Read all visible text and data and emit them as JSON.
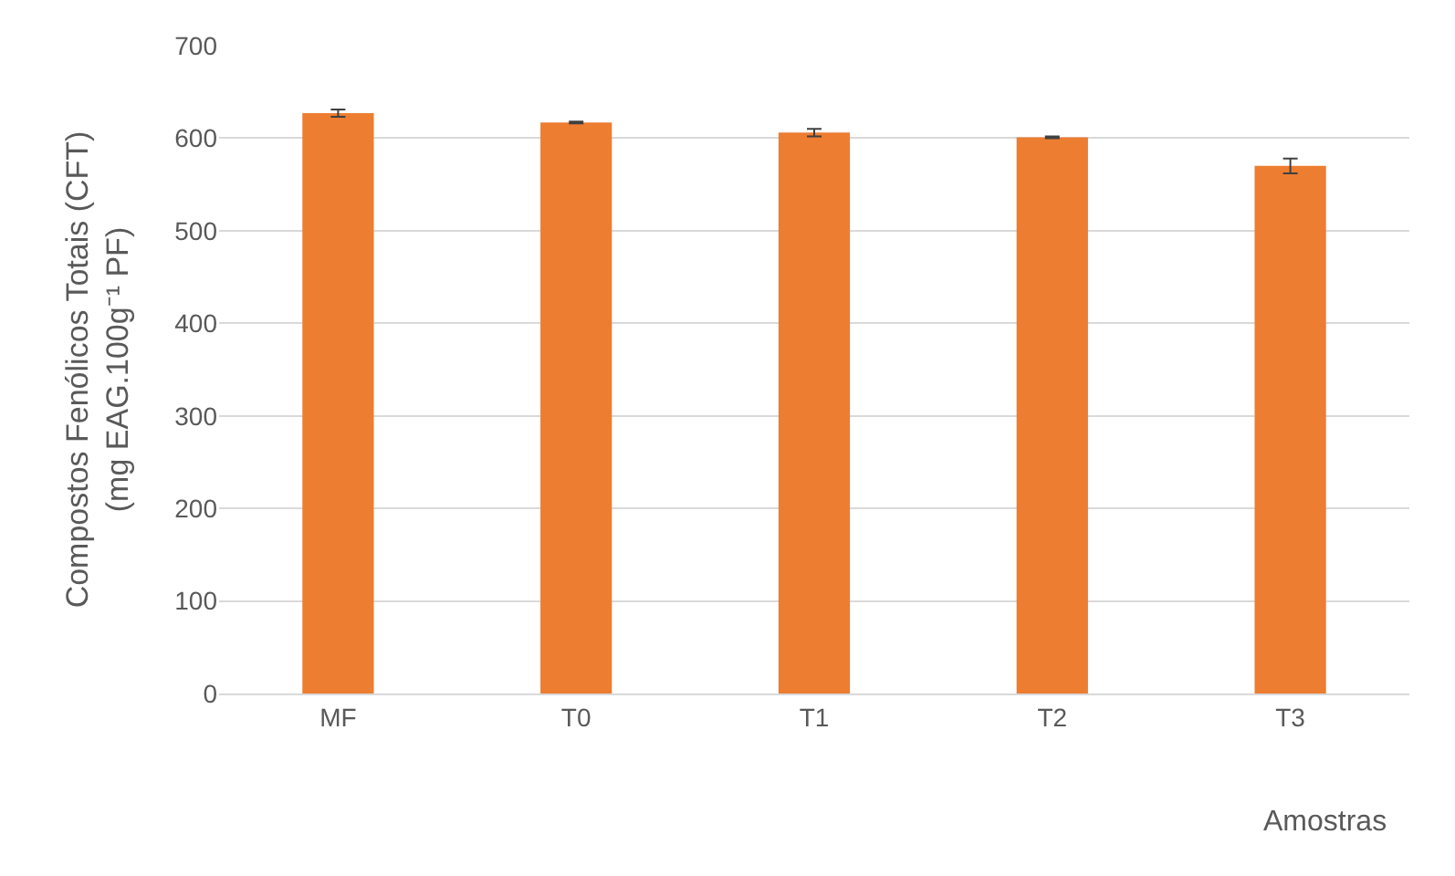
{
  "chart_data": {
    "type": "bar",
    "xlabel": "Amostras",
    "ylabel": "Compostos Fenólicos Totais (CFT)\n(mg EAG.100g⁻¹ PF)",
    "categories": [
      "MF",
      "T0",
      "T1",
      "T2",
      "T3"
    ],
    "values": [
      627,
      617,
      606,
      601,
      570
    ],
    "errors": [
      4,
      1,
      4,
      1,
      8
    ],
    "color": "#ed7d31",
    "ylim": [
      0,
      700
    ],
    "yticks": [
      0,
      100,
      200,
      300,
      400,
      500,
      600,
      700
    ],
    "grid": "y"
  }
}
